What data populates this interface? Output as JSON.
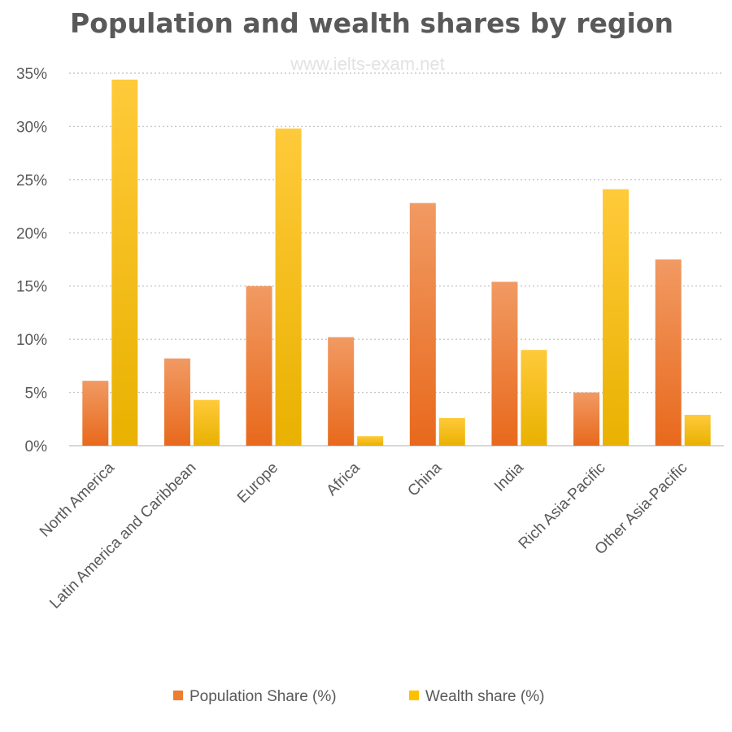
{
  "watermark": "www.ielts-exam.net",
  "colors": {
    "population": "#ed7d31",
    "wealth": "#ffc000"
  },
  "chart_data": {
    "type": "bar",
    "title": "Population and wealth shares by region",
    "xlabel": "",
    "ylabel": "",
    "ylim": [
      0,
      35
    ],
    "y_ticks": [
      {
        "value": 0,
        "label": "0%"
      },
      {
        "value": 5,
        "label": "5%"
      },
      {
        "value": 10,
        "label": "10%"
      },
      {
        "value": 15,
        "label": "15%"
      },
      {
        "value": 20,
        "label": "20%"
      },
      {
        "value": 25,
        "label": "25%"
      },
      {
        "value": 30,
        "label": "30%"
      },
      {
        "value": 35,
        "label": "35%"
      }
    ],
    "grid": true,
    "legend_position": "bottom",
    "categories": [
      "North America",
      "Latin America and Caribbean",
      "Europe",
      "Africa",
      "China",
      "India",
      "Rich Asia-Pacific",
      "Other Asia-Pacific"
    ],
    "series": [
      {
        "name": "Population Share (%)",
        "values": [
          6.1,
          8.2,
          15.0,
          10.2,
          22.8,
          15.4,
          5.0,
          17.5
        ]
      },
      {
        "name": "Wealth share (%)",
        "values": [
          34.4,
          4.3,
          29.8,
          0.9,
          2.6,
          9.0,
          24.1,
          2.9
        ]
      }
    ]
  }
}
